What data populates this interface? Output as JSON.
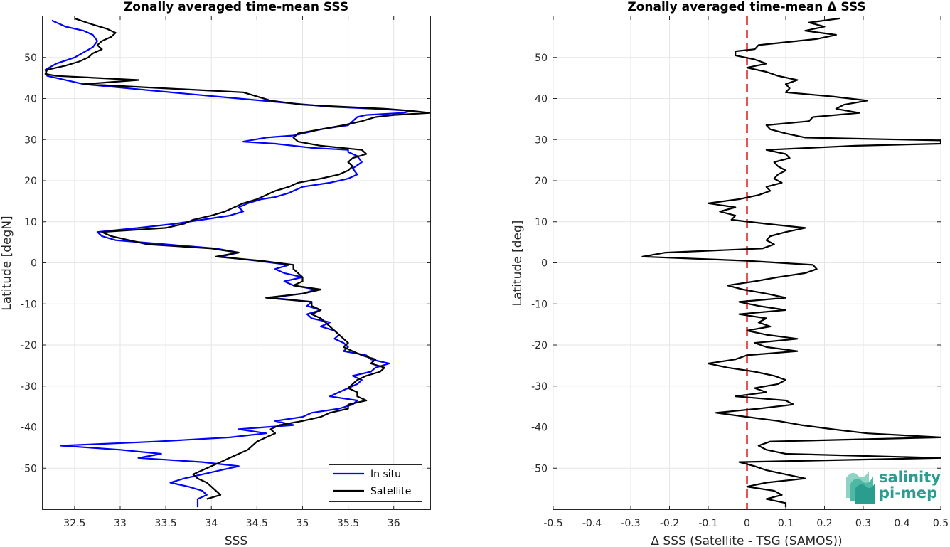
{
  "chart_data": [
    {
      "type": "line",
      "title": "Zonally averaged time-mean SSS",
      "xlabel": "SSS",
      "ylabel": "Latitude [degN]",
      "xlim": [
        32.15,
        36.4
      ],
      "ylim": [
        -60,
        60
      ],
      "xticks": [
        32.5,
        33,
        33.5,
        34,
        34.5,
        35,
        35.5,
        36
      ],
      "xtick_labels": [
        "32.5",
        "33",
        "33.5",
        "34",
        "34.5",
        "35",
        "35.5",
        "36"
      ],
      "yticks": [
        -50,
        -40,
        -30,
        -20,
        -10,
        0,
        10,
        20,
        30,
        40,
        50
      ],
      "ytick_labels": [
        "-50",
        "-40",
        "-30",
        "-20",
        "-10",
        "0",
        "10",
        "20",
        "30",
        "40",
        "50"
      ],
      "grid": true,
      "legend": "bottom-right",
      "series": [
        {
          "name": "In situ",
          "color": "#0000ff",
          "lat": [
            59,
            57.5,
            56.5,
            55.5,
            54,
            52.5,
            50,
            48.5,
            47,
            45.5,
            43.5,
            41,
            40,
            39,
            38,
            37.5,
            37,
            36.5,
            36,
            35.5,
            34.5,
            33.5,
            32.5,
            31,
            30.5,
            29.5,
            29,
            28,
            27.5,
            27,
            26,
            24.5,
            23,
            21.5,
            20.5,
            19.5,
            18.5,
            17,
            16,
            15.5,
            14.5,
            13.5,
            12.5,
            11.5,
            10.5,
            9.5,
            8.5,
            7.5,
            6.5,
            5.5,
            4.5,
            3.5,
            2.5,
            1.5,
            0.5,
            -0.5,
            -1.5,
            -2.5,
            -3.5,
            -4.5,
            -5.5,
            -6.5,
            -7.5,
            -8.5,
            -9.5,
            -10.5,
            -11.5,
            -12.5,
            -13.5,
            -14.5,
            -15.5,
            -16.5,
            -17.5,
            -18.5,
            -19.5,
            -20.5,
            -21.5,
            -22.5,
            -23.5,
            -24.5,
            -25.5,
            -26.5,
            -27.5,
            -28.5,
            -29.5,
            -30.5,
            -31.5,
            -32.5,
            -33.5,
            -34.5,
            -35.5,
            -36.5,
            -37.5,
            -38.5,
            -39.5,
            -40.5,
            -41.5,
            -42.5,
            -43.5,
            -44.5,
            -45.5,
            -46.5,
            -47.5,
            -48.5,
            -49.5,
            -50.5,
            -51.5,
            -52.5,
            -53.5,
            -54.5,
            -55.5,
            -56.5,
            -57.5,
            -58.5,
            -59.5
          ],
          "sss": [
            32.25,
            32.4,
            32.6,
            32.7,
            32.75,
            32.7,
            32.5,
            32.3,
            32.18,
            32.2,
            32.6,
            33.8,
            34.3,
            34.8,
            35.3,
            35.8,
            36.2,
            36.1,
            35.7,
            35.6,
            35.55,
            35.5,
            35.2,
            34.9,
            34.6,
            34.35,
            34.7,
            35.1,
            35.5,
            35.5,
            35.6,
            35.65,
            35.55,
            35.6,
            35.5,
            35.3,
            35.0,
            34.85,
            34.7,
            34.55,
            34.4,
            34.3,
            34.35,
            34.2,
            33.9,
            33.6,
            33.2,
            32.75,
            32.8,
            32.95,
            33.5,
            34.05,
            34.3,
            34.1,
            34.5,
            34.85,
            34.7,
            34.8,
            35.0,
            34.8,
            34.9,
            35.15,
            35.0,
            34.65,
            35.1,
            35.05,
            35.2,
            35.05,
            35.1,
            35.3,
            35.2,
            35.35,
            35.4,
            35.35,
            35.45,
            35.5,
            35.45,
            35.7,
            35.75,
            35.95,
            35.8,
            35.75,
            35.55,
            35.65,
            35.6,
            35.5,
            35.4,
            35.3,
            35.6,
            35.55,
            35.4,
            35.1,
            35.0,
            34.7,
            34.9,
            34.3,
            34.6,
            34.2,
            33.4,
            32.35,
            33.0,
            33.45,
            33.2,
            33.9,
            34.3,
            34.1,
            33.9,
            33.7,
            33.55,
            33.75,
            33.9,
            33.95,
            33.85,
            33.85,
            33.85
          ],
          "line_width": 2.2
        },
        {
          "name": "Satellite",
          "color": "#000000",
          "lat": [
            59.5,
            58,
            57,
            56,
            55,
            54,
            53,
            52,
            51,
            50,
            49,
            48,
            47,
            46,
            45.5,
            44.5,
            43.5,
            41.5,
            40.5,
            39.5,
            38.5,
            37.5,
            37,
            36.5,
            36,
            35.5,
            34.5,
            33.5,
            32.5,
            31.5,
            30.5,
            29.5,
            28.5,
            27.5,
            26.5,
            25.5,
            24.5,
            23.5,
            22.5,
            21.5,
            20.5,
            19.5,
            18.5,
            17.5,
            16.5,
            15.5,
            14.5,
            13.5,
            12.5,
            11.5,
            10.5,
            9.5,
            8.5,
            7.5,
            6.5,
            5.5,
            4.5,
            3.5,
            2.5,
            1.5,
            0.5,
            -0.5,
            -1.5,
            -2.5,
            -3.5,
            -4.5,
            -5.5,
            -6.5,
            -7.5,
            -8.5,
            -9.5,
            -10.5,
            -11.5,
            -12.5,
            -13.5,
            -14.5,
            -15.5,
            -16.5,
            -17.5,
            -18.5,
            -19.5,
            -20.5,
            -21.5,
            -22.5,
            -23.5,
            -24.5,
            -25.5,
            -26.5,
            -27.5,
            -28.5,
            -29.5,
            -30.5,
            -31.5,
            -32.5,
            -33.5,
            -34.5,
            -35.5,
            -36.5,
            -37.5,
            -38.5,
            -39.5,
            -40.5,
            -41.5,
            -42.5,
            -43.5,
            -44.5,
            -45.5,
            -46.5,
            -47.5,
            -48.5,
            -49.5,
            -50.5,
            -51.5,
            -52.5,
            -53.5,
            -54.5,
            -55.5,
            -56.5,
            -57.5,
            -58.5,
            -59.5
          ],
          "sss": [
            32.5,
            32.7,
            32.85,
            32.95,
            32.9,
            32.8,
            32.75,
            32.8,
            32.7,
            32.65,
            32.55,
            32.4,
            32.2,
            32.18,
            32.3,
            33.2,
            32.6,
            34.35,
            34.5,
            34.65,
            35.0,
            35.9,
            36.2,
            36.4,
            36.0,
            35.8,
            35.65,
            35.45,
            35.2,
            34.95,
            34.9,
            34.95,
            35.2,
            35.65,
            35.7,
            35.55,
            35.5,
            35.55,
            35.5,
            35.4,
            35.2,
            34.95,
            34.85,
            34.7,
            34.6,
            34.5,
            34.35,
            34.25,
            34.15,
            34.0,
            33.8,
            33.7,
            33.5,
            32.8,
            32.9,
            33.1,
            33.3,
            34.0,
            34.3,
            34.05,
            34.55,
            34.9,
            34.9,
            34.95,
            35.0,
            35.0,
            34.9,
            35.2,
            35.0,
            34.6,
            35.1,
            35.1,
            35.2,
            35.1,
            35.2,
            35.25,
            35.3,
            35.35,
            35.4,
            35.45,
            35.5,
            35.45,
            35.55,
            35.65,
            35.8,
            35.75,
            35.9,
            35.85,
            35.7,
            35.6,
            35.55,
            35.5,
            35.6,
            35.6,
            35.7,
            35.5,
            35.5,
            35.3,
            35.2,
            35.0,
            34.75,
            34.65,
            34.7,
            34.6,
            34.5,
            34.45,
            34.4,
            34.3,
            34.2,
            34.1,
            34.0,
            33.9,
            33.8,
            33.85,
            33.95,
            34.0,
            34.05,
            34.1,
            33.95
          ],
          "line_width": 2.2
        }
      ]
    },
    {
      "type": "line",
      "title": "Zonally averaged time-mean Δ SSS",
      "xlabel": "Δ SSS (Satellite - TSG (SAMOS))",
      "ylabel": "Latitude [deg]",
      "xlim": [
        -0.5,
        0.5
      ],
      "ylim": [
        -60,
        60
      ],
      "xticks": [
        -0.5,
        -0.4,
        -0.3,
        -0.2,
        -0.1,
        0,
        0.1,
        0.2,
        0.3,
        0.4,
        0.5
      ],
      "xtick_labels": [
        "-0.5",
        "-0.4",
        "-0.3",
        "-0.2",
        "-0.1",
        "0",
        "0.1",
        "0.2",
        "0.3",
        "0.4",
        "0.5"
      ],
      "yticks": [
        -50,
        -40,
        -30,
        -20,
        -10,
        0,
        10,
        20,
        30,
        40,
        50
      ],
      "ytick_labels": [
        "-50",
        "-40",
        "-30",
        "-20",
        "-10",
        "0",
        "10",
        "20",
        "30",
        "40",
        "50"
      ],
      "grid": true,
      "zero_line": {
        "x": 0,
        "color": "#e41a1c",
        "style": "dashed"
      },
      "series": [
        {
          "color": "#000000",
          "lat": [
            59.5,
            58.5,
            57.5,
            56.5,
            55.5,
            54.5,
            53.5,
            53,
            52,
            51.5,
            50.5,
            49.5,
            48.5,
            47.5,
            46.5,
            45.5,
            44.5,
            43.5,
            42.5,
            41.5,
            40.5,
            39.5,
            38.5,
            37.5,
            36.5,
            35.5,
            34.5,
            33.5,
            32.5,
            31.5,
            30.5,
            29.8,
            29.0,
            28.5,
            27.5,
            26.5,
            25.5,
            24.5,
            23.5,
            22.5,
            21.5,
            20.5,
            19.5,
            18.5,
            17.5,
            16.5,
            15.5,
            14.5,
            13.5,
            12.5,
            11.5,
            10.5,
            9.5,
            8.5,
            7.5,
            6.5,
            5.5,
            4.5,
            3.5,
            2.5,
            1.5,
            0.5,
            -0.5,
            -1.5,
            -2.5,
            -3.5,
            -4.5,
            -5.5,
            -6.5,
            -7.5,
            -8.5,
            -9.5,
            -10.5,
            -11.5,
            -12.5,
            -13.5,
            -14.5,
            -15.5,
            -16.5,
            -17.5,
            -18.5,
            -19.5,
            -20.5,
            -21.5,
            -22.5,
            -23.5,
            -24.5,
            -25.5,
            -26.5,
            -27.5,
            -28.5,
            -29.5,
            -30.5,
            -31.5,
            -32.5,
            -33.5,
            -34.5,
            -35.5,
            -36.5,
            -37.5,
            -38.5,
            -39.5,
            -40.5,
            -41.5,
            -42.5,
            -43.5,
            -44.5,
            -45.5,
            -46.5,
            -47.5,
            -48.5,
            -49.5,
            -50.5,
            -51.5,
            -52.5,
            -53.5,
            -54.5,
            -55.5,
            -56.5,
            -57.5,
            -58.5,
            -59.5
          ],
          "dsss": [
            0.24,
            0.16,
            0.2,
            0.15,
            0.23,
            0.18,
            0.08,
            0.03,
            0.02,
            -0.03,
            -0.03,
            0.02,
            0.05,
            0.0,
            0.05,
            0.08,
            0.13,
            0.1,
            0.11,
            0.1,
            0.22,
            0.31,
            0.25,
            0.23,
            0.29,
            0.17,
            0.16,
            0.05,
            0.06,
            0.1,
            0.15,
            0.5,
            0.5,
            0.28,
            0.05,
            0.1,
            0.11,
            0.07,
            0.08,
            0.1,
            0.08,
            0.07,
            0.09,
            0.05,
            0.06,
            0.03,
            -0.02,
            -0.1,
            -0.03,
            -0.07,
            -0.03,
            -0.04,
            0.05,
            0.15,
            0.1,
            0.06,
            0.05,
            0.07,
            0.04,
            -0.21,
            -0.27,
            0.0,
            0.17,
            0.18,
            0.15,
            0.08,
            0.02,
            -0.05,
            -0.01,
            0.05,
            0.1,
            -0.02,
            0.03,
            0.1,
            -0.02,
            0.05,
            0.03,
            0.06,
            0.0,
            0.05,
            0.13,
            0.02,
            0.05,
            0.13,
            0.0,
            -0.03,
            -0.1,
            -0.05,
            0.02,
            0.07,
            0.1,
            0.08,
            0.02,
            0.05,
            -0.03,
            0.1,
            0.12,
            0.03,
            -0.08,
            0.0,
            0.08,
            0.14,
            0.22,
            0.31,
            0.5,
            0.06,
            0.03,
            0.05,
            0.1,
            0.5,
            -0.02,
            0.02,
            0.05,
            0.1,
            0.15,
            0.05,
            0.0,
            0.07,
            0.09,
            0.05,
            0.1,
            0.1
          ]
        }
      ]
    }
  ],
  "legend": {
    "in_situ": "In situ",
    "satellite": "Satellite"
  },
  "logo": {
    "line1": "salinity",
    "line2": "pi-mep"
  }
}
